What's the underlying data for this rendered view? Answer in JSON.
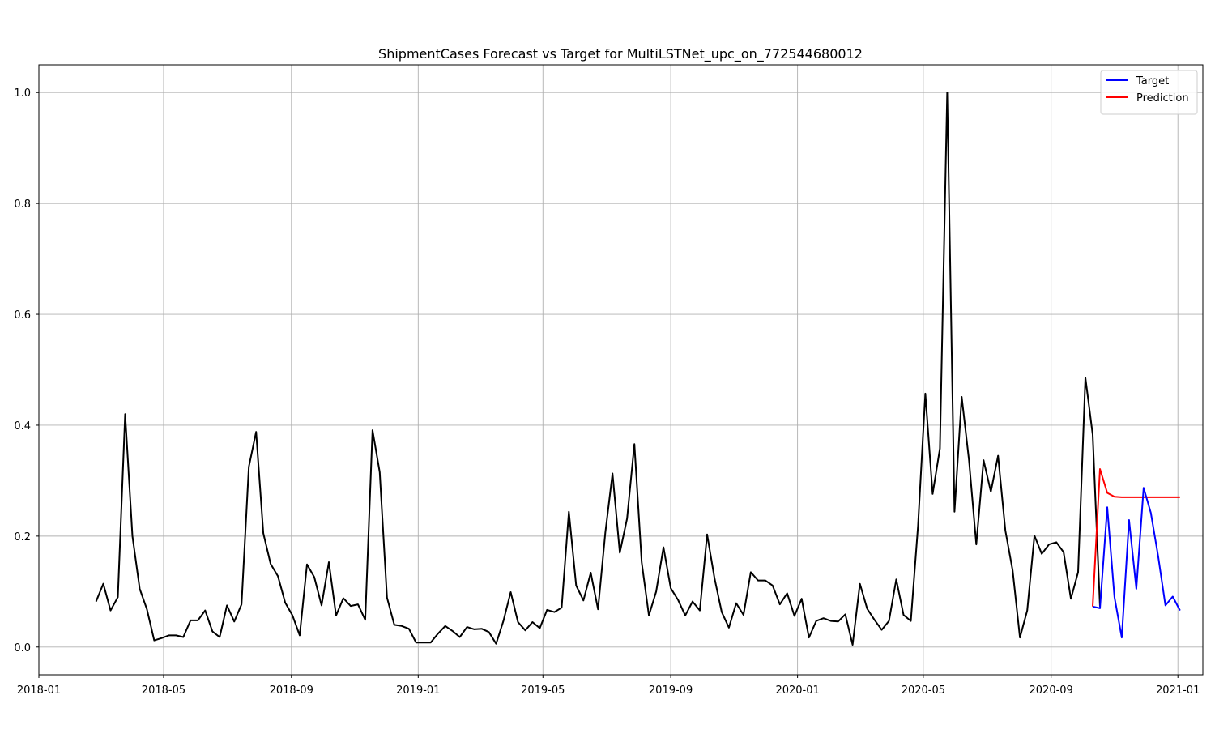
{
  "chart_data": {
    "type": "line",
    "title": "ShipmentCases Forecast vs Target for MultiLSTNet_upc_on_772544680012",
    "xlabel": "",
    "ylabel": "",
    "xlim": [
      "2018-01-01",
      "2021-01-25"
    ],
    "ylim": [
      -0.05,
      1.05
    ],
    "grid": true,
    "legend_position": "top-right",
    "x_ticks": [
      "2018-01",
      "2018-05",
      "2018-09",
      "2019-01",
      "2019-05",
      "2019-09",
      "2020-01",
      "2020-05",
      "2020-09",
      "2021-01"
    ],
    "y_ticks": [
      "0.0",
      "0.2",
      "0.4",
      "0.6",
      "0.8",
      "1.0"
    ],
    "series": [
      {
        "role": "history",
        "color": "#000000",
        "start_date": "2018-02-25",
        "step_days": 7,
        "values": [
          0.082,
          0.114,
          0.066,
          0.09,
          0.42,
          0.2,
          0.105,
          0.068,
          0.012,
          0.016,
          0.021,
          0.021,
          0.018,
          0.048,
          0.048,
          0.066,
          0.028,
          0.018,
          0.075,
          0.046,
          0.077,
          0.325,
          0.388,
          0.205,
          0.15,
          0.128,
          0.08,
          0.057,
          0.021,
          0.149,
          0.126,
          0.075,
          0.153,
          0.057,
          0.088,
          0.074,
          0.077,
          0.049,
          0.391,
          0.315,
          0.089,
          0.04,
          0.038,
          0.033,
          0.008,
          0.008,
          0.008,
          0.024,
          0.038,
          0.029,
          0.018,
          0.036,
          0.032,
          0.033,
          0.027,
          0.006,
          0.047,
          0.099,
          0.045,
          0.03,
          0.045,
          0.034,
          0.067,
          0.063,
          0.071,
          0.244,
          0.111,
          0.084,
          0.134,
          0.068,
          0.206,
          0.313,
          0.17,
          0.232,
          0.366,
          0.153,
          0.057,
          0.1,
          0.18,
          0.106,
          0.085,
          0.057,
          0.082,
          0.066,
          0.203,
          0.125,
          0.063,
          0.035,
          0.079,
          0.058,
          0.135,
          0.12,
          0.12,
          0.111,
          0.077,
          0.097,
          0.056,
          0.087,
          0.017,
          0.047,
          0.052,
          0.047,
          0.046,
          0.059,
          0.004,
          0.114,
          0.069,
          0.049,
          0.031,
          0.047,
          0.122,
          0.058,
          0.047,
          0.219,
          0.457,
          0.276,
          0.358,
          1.0,
          0.244,
          0.451,
          0.337,
          0.185,
          0.337,
          0.28,
          0.345,
          0.21,
          0.138,
          0.017,
          0.066,
          0.201,
          0.168,
          0.185,
          0.189,
          0.171,
          0.087,
          0.135,
          0.486,
          0.383,
          0.073
        ]
      },
      {
        "name": "Target",
        "color": "#0000ff",
        "start_date": "2020-10-11",
        "step_days": 7,
        "values": [
          0.073,
          0.07,
          0.252,
          0.09,
          0.017,
          0.229,
          0.105,
          0.287,
          0.242,
          0.164,
          0.075,
          0.091,
          0.066
        ]
      },
      {
        "name": "Prediction",
        "color": "#ff0000",
        "start_date": "2020-10-11",
        "step_days": 7,
        "values": [
          0.073,
          0.321,
          0.278,
          0.271,
          0.27,
          0.27,
          0.27,
          0.27,
          0.27,
          0.27,
          0.27,
          0.27,
          0.27
        ]
      }
    ]
  }
}
